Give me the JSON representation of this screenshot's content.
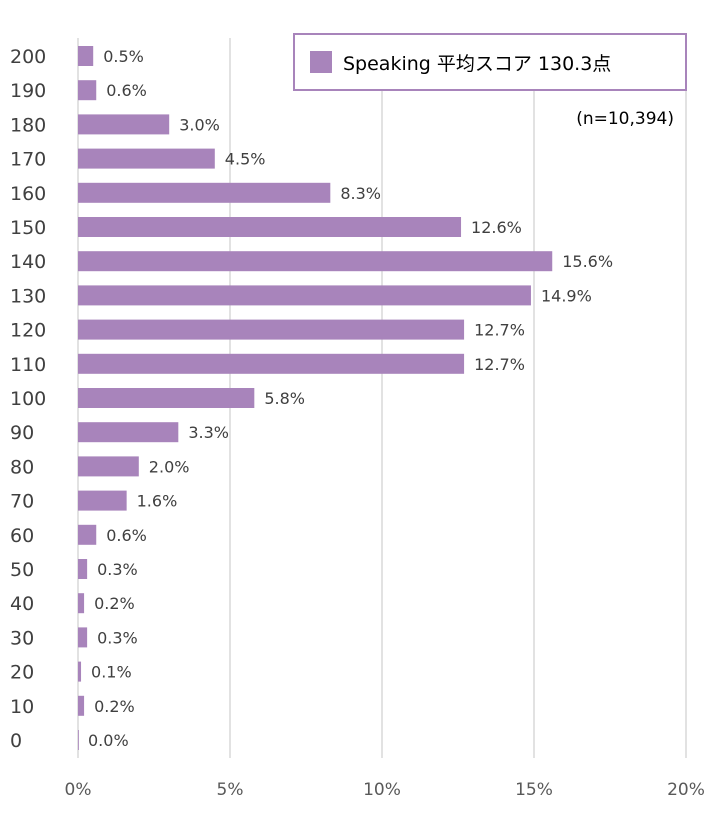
{
  "chart_data": {
    "type": "bar",
    "orientation": "horizontal",
    "categories": [
      "200",
      "190",
      "180",
      "170",
      "160",
      "150",
      "140",
      "130",
      "120",
      "110",
      "100",
      "90",
      "80",
      "70",
      "60",
      "50",
      "40",
      "30",
      "20",
      "10",
      "0"
    ],
    "series": [
      {
        "name": "Speaking 平均スコア 130.3点",
        "values": [
          0.5,
          0.6,
          3.0,
          4.5,
          8.3,
          12.6,
          15.6,
          14.9,
          12.7,
          12.7,
          5.8,
          3.3,
          2.0,
          1.6,
          0.6,
          0.3,
          0.2,
          0.3,
          0.1,
          0.2,
          0.0
        ],
        "labels": [
          "0.5%",
          "0.6%",
          "3.0%",
          "4.5%",
          "8.3%",
          "12.6%",
          "15.6%",
          "14.9%",
          "12.7%",
          "12.7%",
          "5.8%",
          "3.3%",
          "2.0%",
          "1.6%",
          "0.6%",
          "0.3%",
          "0.2%",
          "0.3%",
          "0.1%",
          "0.2%",
          "0.0%"
        ],
        "color": "#a884bb"
      }
    ],
    "xlim": [
      0,
      20
    ],
    "x_ticks": [
      0,
      5,
      10,
      15,
      20
    ],
    "x_tick_labels": [
      "0%",
      "5%",
      "10%",
      "15%",
      "20%"
    ],
    "grid": "vertical",
    "gridline_color": "#d9d9d9",
    "legend_position": "top-right",
    "legend_border_color": "#a884bb",
    "annotation": "(n=10,394)",
    "title": "",
    "xlabel": "",
    "ylabel": ""
  }
}
